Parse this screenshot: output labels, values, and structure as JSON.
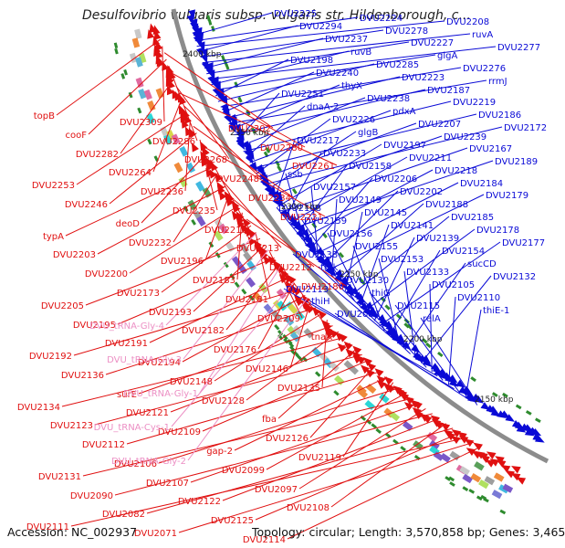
{
  "title": "Desulfovibrio vulgaris subsp. vulgaris str. Hildenborough, c...",
  "footer": {
    "accession": "Accession: NC_002937",
    "summary": "Topology: circular; Length: 3,570,858 bp; Genes: 3,465"
  },
  "colors": {
    "forward": "#0a0ad6",
    "reverse": "#e01010",
    "rna": "#ec8fc4",
    "backbone": "#8c8c8c"
  },
  "kbp_ticks": [
    "2400 kbp",
    "2350 kbp",
    "2300 kbp",
    "2250 kbp",
    "2200 kbp",
    "2150 kbp"
  ],
  "forward_labels": [
    "DVU2225",
    "DVU2224",
    "DVU2208",
    "DVU2294",
    "DVU2278",
    "ruvA",
    "DVU2237",
    "DVU2227",
    "DVU2277",
    "ruvB",
    "glgA",
    "DVU2198",
    "DVU2285",
    "DVU2276",
    "DVU2240",
    "DVU2223",
    "rrmJ",
    "thyX",
    "DVU2187",
    "DVU2251",
    "DVU2238",
    "DVU2219",
    "dnaA-2",
    "pdxA",
    "DVU2186",
    "DVU2226",
    "DVU2207",
    "DVU2172",
    "glgB",
    "DVU2239",
    "DVU2217",
    "DVU2197",
    "DVU2167",
    "DVU2233",
    "DVU2211",
    "DVU2189",
    "DVU2158",
    "DVU2218",
    "ssb",
    "DVU2206",
    "DVU2184",
    "DVU2157",
    "DVU2202",
    "DVU2179",
    "DVU2149",
    "DVU2188",
    "DVU2168",
    "DVU2145",
    "DVU2185",
    "DVU2159",
    "DVU2141",
    "DVU2178",
    "DVU2156",
    "DVU2139",
    "DVU2177",
    "DVU2155",
    "DVU2154",
    "DVU2138",
    "DVU2153",
    "sucCD",
    "tmk",
    "DVU2133",
    "DVU2132",
    "DVU2130",
    "DVU2105",
    "DVU2113",
    "thiG",
    "DVU2110",
    "thiH",
    "DVU2115",
    "thiE-1",
    "DVU2086",
    "relA"
  ],
  "reverse_labels": [
    "topB",
    "DVU2309",
    "DVU2302",
    "cooF",
    "DVU2286",
    "DVU2280",
    "DVU2282",
    "DVU2268",
    "DVU2261",
    "DVU2264",
    "DVU2248",
    "DVU2253",
    "DVU2236",
    "DVU2234",
    "DVU2246",
    "DVU2235",
    "DVU2221",
    "deoD",
    "DVU2210",
    "typA",
    "DVU2232",
    "DVU2213",
    "DVU2203",
    "DVU2196",
    "DVU2212",
    "DVU2200",
    "DVU2183",
    "DVU2180",
    "DVU2173",
    "DVU2181",
    "DVU2205",
    "DVU2193",
    "DVU2209",
    "DVU2195",
    "DVU2182",
    "tnaA",
    "DVU2191",
    "DVU2176",
    "DVU2192",
    "DVU2194",
    "DVU2146",
    "DVU2136",
    "DVU2148",
    "DVU2135",
    "surE",
    "DVU2128",
    "DVU2134",
    "DVU2121",
    "fba",
    "DVU2123",
    "DVU2109",
    "DVU2126",
    "DVU2112",
    "gap-2",
    "DVU2119",
    "DVU2106",
    "DVU2099",
    "DVU2131",
    "DVU2107",
    "DVU2097",
    "DVU2090",
    "DVU2122",
    "DVU2108",
    "DVU2082",
    "DVU2125",
    "DVU2111",
    "DVU2071",
    "DVU2114"
  ],
  "rna_labels": [
    "DVU_tRNA-Gly-4",
    "DVU_tRNA-Gly-3",
    "DVU_tRNA-Gly-1",
    "DVU_tRNA-Cys-1",
    "DVU_tRNA-Gly-2"
  ],
  "feature_palette": [
    "#2ad6d6",
    "#7a58c8",
    "#d6d64a",
    "#5aa05a",
    "#f08a3a",
    "#7a7ad6",
    "#c8c8c8",
    "#e06aa0",
    "#40b8e0",
    "#9e9e9e",
    "#5ab4d6",
    "#b0e060"
  ]
}
